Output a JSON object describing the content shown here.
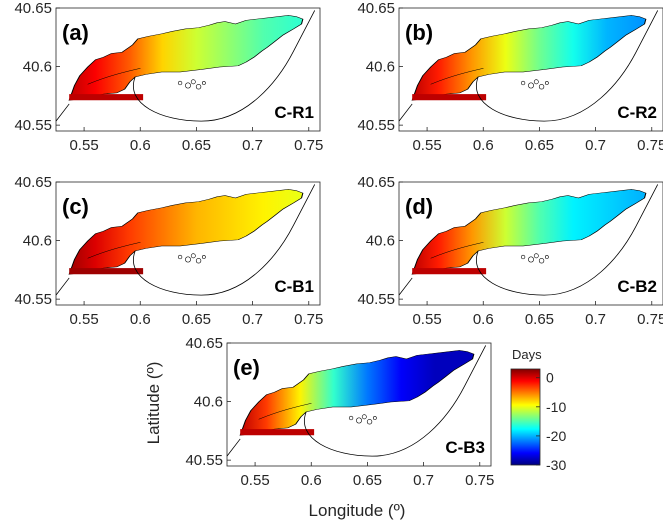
{
  "figure": {
    "xlabel": "Longitude (º)",
    "ylabel": "Latitude (º)",
    "colorbar": {
      "title": "Days",
      "ticks": [
        0,
        -10,
        -20,
        -30
      ],
      "range": [
        -30,
        3
      ],
      "colormap": [
        "#00007f",
        "#0000ff",
        "#007fff",
        "#00ffff",
        "#7fff7f",
        "#ffff00",
        "#ff7f00",
        "#ff0000",
        "#7f0000"
      ]
    }
  },
  "chart_data": [
    {
      "type": "heatmap",
      "panel_label": "(a)",
      "scenario": "C-R1",
      "xticks": [
        "0.55",
        "0.6",
        "0.65",
        "0.7",
        "0.75"
      ],
      "yticks": [
        "40.55",
        "40.6",
        "40.65"
      ],
      "xlim": [
        0.525,
        0.76
      ],
      "ylim": [
        40.545,
        40.65
      ],
      "profile": {
        "lon": [
          0.53,
          0.56,
          0.59,
          0.62,
          0.65,
          0.68,
          0.71,
          0.74
        ],
        "days": [
          1,
          -1,
          -4,
          -8,
          -11,
          -13,
          -15,
          -16
        ]
      }
    },
    {
      "type": "heatmap",
      "panel_label": "(b)",
      "scenario": "C-R2",
      "xticks": [
        "0.55",
        "0.6",
        "0.65",
        "0.7",
        "0.75"
      ],
      "yticks": [
        "40.55",
        "40.6",
        "40.65"
      ],
      "xlim": [
        0.525,
        0.76
      ],
      "ylim": [
        40.545,
        40.65
      ],
      "profile": {
        "lon": [
          0.53,
          0.56,
          0.59,
          0.62,
          0.65,
          0.68,
          0.71,
          0.74
        ],
        "days": [
          1,
          -2,
          -6,
          -10,
          -14,
          -17,
          -20,
          -21
        ]
      }
    },
    {
      "type": "heatmap",
      "panel_label": "(c)",
      "scenario": "C-B1",
      "xticks": [
        "0.55",
        "0.6",
        "0.65",
        "0.7",
        "0.75"
      ],
      "yticks": [
        "40.55",
        "40.6",
        "40.65"
      ],
      "xlim": [
        0.525,
        0.76
      ],
      "ylim": [
        40.545,
        40.65
      ],
      "profile": {
        "lon": [
          0.53,
          0.56,
          0.59,
          0.62,
          0.65,
          0.68,
          0.71,
          0.74
        ],
        "days": [
          2,
          0,
          -3,
          -5,
          -7,
          -8,
          -9,
          -10
        ]
      }
    },
    {
      "type": "heatmap",
      "panel_label": "(d)",
      "scenario": "C-B2",
      "xticks": [
        "0.55",
        "0.6",
        "0.65",
        "0.7",
        "0.75"
      ],
      "yticks": [
        "40.55",
        "40.6",
        "40.65"
      ],
      "xlim": [
        0.525,
        0.76
      ],
      "ylim": [
        40.545,
        40.65
      ],
      "profile": {
        "lon": [
          0.53,
          0.56,
          0.59,
          0.62,
          0.65,
          0.68,
          0.71,
          0.74
        ],
        "days": [
          1,
          -2,
          -6,
          -11,
          -15,
          -18,
          -19,
          -20
        ]
      }
    },
    {
      "type": "heatmap",
      "panel_label": "(e)",
      "scenario": "C-B3",
      "xticks": [
        "0.55",
        "0.6",
        "0.65",
        "0.7",
        "0.75"
      ],
      "yticks": [
        "40.55",
        "40.6",
        "40.65"
      ],
      "xlim": [
        0.525,
        0.76
      ],
      "ylim": [
        40.545,
        40.65
      ],
      "profile": {
        "lon": [
          0.53,
          0.56,
          0.59,
          0.62,
          0.65,
          0.68,
          0.71,
          0.74
        ],
        "days": [
          1,
          -3,
          -9,
          -16,
          -22,
          -26,
          -28,
          -28
        ]
      }
    }
  ]
}
